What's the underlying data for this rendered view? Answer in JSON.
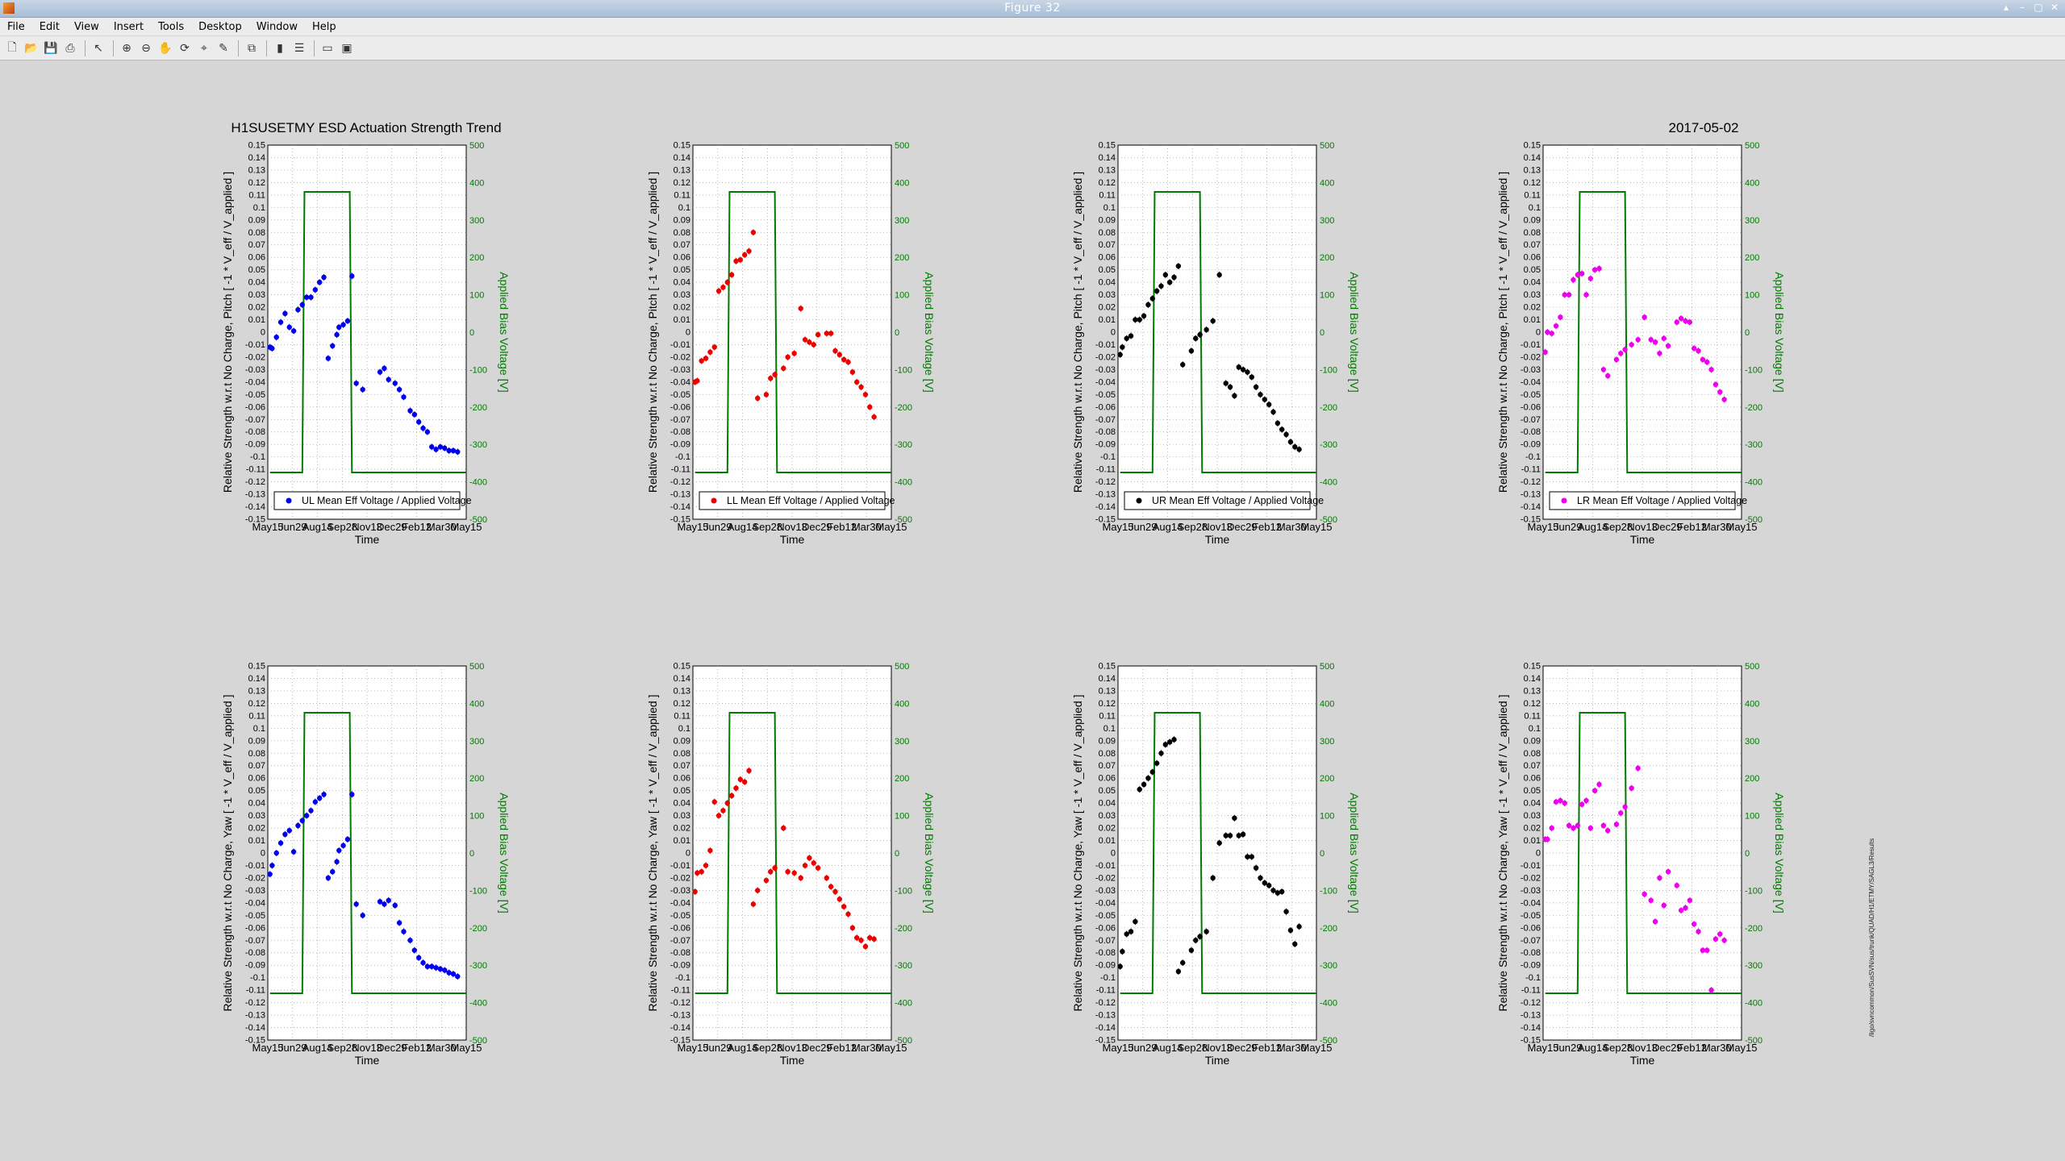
{
  "window": {
    "title": "Figure 32",
    "menu": [
      "File",
      "Edit",
      "View",
      "Insert",
      "Tools",
      "Desktop",
      "Window",
      "Help"
    ],
    "toolbar_icons": [
      "new-figure-icon",
      "open-file-icon",
      "save-icon",
      "print-icon",
      "|",
      "pointer-icon",
      "|",
      "zoom-in-icon",
      "zoom-out-icon",
      "pan-icon",
      "rotate-icon",
      "data-cursor-icon",
      "brush-icon",
      "|",
      "link-plot-icon",
      "|",
      "colorbar-icon",
      "legend-icon",
      "|",
      "hide-tools-icon",
      "show-tools-icon"
    ]
  },
  "figure": {
    "main_title": "H1SUSETMY ESD Actuation Strength Trend",
    "date_title": "2017-05-02",
    "watermark": "/ligo/svncommon/SusSVN/sus/trunk/QUAD/H1/ETMY/SAGL3/Results",
    "colors": {
      "UL": "#0000ee",
      "LL": "#ee0000",
      "UR": "#000000",
      "LR": "#ee00ee",
      "bias": "#007a00"
    }
  },
  "chart_data": [
    {
      "type": "scatter",
      "panel": "pitch-UL",
      "ylabel": "Relative Strength w.r.t No Charge, Pitch [ -1 * V_eff / V_applied ]",
      "y2label": "Applied Bias Voltage [V]",
      "xlabel": "Time",
      "legend": "UL Mean Eff Voltage / Applied Voltage",
      "legend_position": "bottom",
      "color": "#0000ee",
      "x_ticks": [
        "May15",
        "Jun29",
        "Aug14",
        "Sep28",
        "Nov13",
        "Dec29",
        "Feb12",
        "Mar30",
        "May15"
      ],
      "ylim": [
        -0.15,
        0.15
      ],
      "y2lim": [
        -500,
        500
      ],
      "grid": true,
      "x": [
        1,
        2,
        4,
        6,
        8,
        10,
        12,
        14,
        16,
        18,
        20,
        22,
        24,
        26,
        28,
        30,
        32,
        33,
        35,
        37,
        39,
        41,
        44,
        52,
        54,
        56,
        59,
        61,
        63,
        66,
        68,
        70,
        72,
        74,
        76,
        78,
        80,
        82,
        84,
        86,
        88
      ],
      "y": [
        -0.012,
        -0.013,
        -0.004,
        0.008,
        0.015,
        0.004,
        0.001,
        0.018,
        0.022,
        0.028,
        0.028,
        0.034,
        0.04,
        0.044,
        -0.021,
        -0.011,
        -0.002,
        0.004,
        0.006,
        0.009,
        0.045,
        -0.041,
        -0.046,
        -0.032,
        -0.029,
        -0.038,
        -0.041,
        -0.046,
        -0.052,
        -0.063,
        -0.066,
        -0.072,
        -0.077,
        -0.08,
        -0.092,
        -0.094,
        -0.092,
        -0.093,
        -0.095,
        -0.095,
        -0.096
      ]
    },
    {
      "type": "scatter",
      "panel": "pitch-LL",
      "ylabel": "Relative Strength w.r.t No Charge, Pitch [ -1 * V_eff / V_applied ]",
      "y2label": "Applied Bias Voltage [V]",
      "xlabel": "Time",
      "legend": "LL Mean Eff Voltage / Applied Voltage",
      "legend_position": "bottom",
      "color": "#ee0000",
      "x_ticks": [
        "May15",
        "Jun29",
        "Aug14",
        "Sep28",
        "Nov13",
        "Dec29",
        "Feb12",
        "Mar30",
        "May15"
      ],
      "ylim": [
        -0.15,
        0.15
      ],
      "y2lim": [
        -500,
        500
      ],
      "grid": true,
      "x": [
        1,
        2,
        4,
        6,
        8,
        10,
        12,
        14,
        16,
        18,
        20,
        22,
        24,
        26,
        28,
        30,
        34,
        36,
        38,
        42,
        44,
        47,
        50,
        52,
        54,
        56,
        58,
        62,
        64,
        66,
        68,
        70,
        72,
        74,
        76,
        78,
        80,
        82,
        84
      ],
      "y": [
        -0.04,
        -0.039,
        -0.023,
        -0.021,
        -0.016,
        -0.012,
        0.033,
        0.036,
        0.04,
        0.046,
        0.057,
        0.058,
        0.062,
        0.065,
        0.08,
        -0.053,
        -0.05,
        -0.037,
        -0.034,
        -0.029,
        -0.02,
        -0.017,
        0.019,
        -0.006,
        -0.008,
        -0.01,
        -0.002,
        -0.001,
        -0.001,
        -0.015,
        -0.018,
        -0.022,
        -0.024,
        -0.032,
        -0.04,
        -0.044,
        -0.05,
        -0.06,
        -0.068
      ]
    },
    {
      "type": "scatter",
      "panel": "pitch-UR",
      "ylabel": "Relative Strength w.r.t No Charge, Pitch [ -1 * V_eff / V_applied ]",
      "y2label": "Applied Bias Voltage [V]",
      "xlabel": "Time",
      "legend": "UR Mean Eff Voltage / Applied Voltage",
      "legend_position": "bottom",
      "color": "#000000",
      "x_ticks": [
        "May15",
        "Jun29",
        "Aug14",
        "Sep28",
        "Nov13",
        "Dec29",
        "Feb12",
        "Mar30",
        "May15"
      ],
      "ylim": [
        -0.15,
        0.15
      ],
      "y2lim": [
        -500,
        500
      ],
      "grid": true,
      "x": [
        1,
        2,
        4,
        6,
        8,
        10,
        12,
        14,
        16,
        18,
        20,
        22,
        24,
        26,
        28,
        30,
        34,
        36,
        38,
        41,
        44,
        47,
        50,
        52,
        54,
        56,
        58,
        60,
        62,
        64,
        66,
        68,
        70,
        72,
        74,
        76,
        78,
        80,
        82,
        84
      ],
      "y": [
        -0.018,
        -0.012,
        -0.005,
        -0.003,
        0.01,
        0.01,
        0.013,
        0.022,
        0.027,
        0.033,
        0.037,
        0.046,
        0.04,
        0.044,
        0.053,
        -0.026,
        -0.015,
        -0.005,
        -0.002,
        0.002,
        0.009,
        0.046,
        -0.041,
        -0.044,
        -0.051,
        -0.028,
        -0.03,
        -0.032,
        -0.036,
        -0.044,
        -0.05,
        -0.054,
        -0.058,
        -0.064,
        -0.073,
        -0.078,
        -0.082,
        -0.088,
        -0.092,
        -0.094
      ]
    },
    {
      "type": "scatter",
      "panel": "pitch-LR",
      "ylabel": "Relative Strength w.r.t No Charge, Pitch [ -1 * V_eff / V_applied ]",
      "y2label": "Applied Bias Voltage [V]",
      "xlabel": "Time",
      "legend": "LR Mean Eff Voltage / Applied Voltage",
      "legend_position": "bottom",
      "color": "#ee00ee",
      "x_ticks": [
        "May15",
        "Jun29",
        "Aug14",
        "Sep28",
        "Nov13",
        "Dec29",
        "Feb12",
        "Mar30",
        "May15"
      ],
      "ylim": [
        -0.15,
        0.15
      ],
      "y2lim": [
        -500,
        500
      ],
      "grid": true,
      "x": [
        1,
        2,
        4,
        6,
        8,
        10,
        12,
        14,
        16,
        18,
        20,
        22,
        24,
        26,
        28,
        30,
        34,
        36,
        38,
        41,
        44,
        47,
        50,
        52,
        54,
        56,
        58,
        62,
        64,
        66,
        68,
        70,
        72,
        74,
        76,
        78,
        80,
        82,
        84
      ],
      "y": [
        -0.016,
        0.0,
        -0.001,
        0.005,
        0.012,
        0.03,
        0.03,
        0.042,
        0.046,
        0.047,
        0.03,
        0.043,
        0.05,
        0.051,
        -0.03,
        -0.035,
        -0.022,
        -0.017,
        -0.014,
        -0.01,
        -0.006,
        0.012,
        -0.006,
        -0.008,
        -0.017,
        -0.005,
        -0.011,
        0.008,
        0.011,
        0.009,
        0.008,
        -0.013,
        -0.015,
        -0.022,
        -0.024,
        -0.03,
        -0.042,
        -0.048,
        -0.054
      ]
    },
    {
      "type": "scatter",
      "panel": "yaw-UL",
      "ylabel": "Relative Strength w.r.t No Charge, Yaw [ -1 * V_eff / V_applied ]",
      "y2label": "Applied Bias Voltage [V]",
      "xlabel": "Time",
      "color": "#0000ee",
      "x_ticks": [
        "May15",
        "Jun29",
        "Aug14",
        "Sep28",
        "Nov13",
        "Dec29",
        "Feb12",
        "Mar30",
        "May15"
      ],
      "ylim": [
        -0.15,
        0.15
      ],
      "y2lim": [
        -500,
        500
      ],
      "grid": true,
      "x": [
        1,
        2,
        4,
        6,
        8,
        10,
        12,
        14,
        16,
        18,
        20,
        22,
        24,
        26,
        28,
        30,
        32,
        33,
        35,
        37,
        39,
        41,
        44,
        52,
        54,
        56,
        59,
        61,
        63,
        66,
        68,
        70,
        72,
        74,
        76,
        78,
        80,
        82,
        84,
        86,
        88
      ],
      "y": [
        -0.017,
        -0.01,
        0.0,
        0.008,
        0.015,
        0.018,
        0.001,
        0.022,
        0.026,
        0.03,
        0.034,
        0.041,
        0.044,
        0.047,
        -0.02,
        -0.015,
        -0.007,
        0.002,
        0.006,
        0.011,
        0.047,
        -0.041,
        -0.05,
        -0.039,
        -0.041,
        -0.038,
        -0.042,
        -0.056,
        -0.063,
        -0.07,
        -0.078,
        -0.084,
        -0.088,
        -0.091,
        -0.091,
        -0.092,
        -0.093,
        -0.094,
        -0.096,
        -0.097,
        -0.099
      ]
    },
    {
      "type": "scatter",
      "panel": "yaw-LL",
      "ylabel": "Relative Strength w.r.t No Charge, Yaw [ -1 * V_eff / V_applied ]",
      "y2label": "Applied Bias Voltage [V]",
      "xlabel": "Time",
      "color": "#ee0000",
      "x_ticks": [
        "May15",
        "Jun29",
        "Aug14",
        "Sep28",
        "Nov13",
        "Dec29",
        "Feb12",
        "Mar30",
        "May15"
      ],
      "ylim": [
        -0.15,
        0.15
      ],
      "y2lim": [
        -500,
        500
      ],
      "grid": true,
      "x": [
        1,
        2,
        4,
        6,
        8,
        10,
        12,
        14,
        16,
        18,
        20,
        22,
        24,
        26,
        28,
        30,
        34,
        36,
        38,
        42,
        44,
        47,
        50,
        52,
        54,
        56,
        58,
        62,
        64,
        66,
        68,
        70,
        72,
        74,
        76,
        78,
        80,
        82,
        84
      ],
      "y": [
        -0.031,
        -0.016,
        -0.015,
        -0.01,
        0.002,
        0.041,
        0.03,
        0.034,
        0.04,
        0.046,
        0.052,
        0.059,
        0.057,
        0.066,
        -0.041,
        -0.03,
        -0.022,
        -0.015,
        -0.012,
        0.02,
        -0.015,
        -0.016,
        -0.02,
        -0.01,
        -0.004,
        -0.008,
        -0.012,
        -0.02,
        -0.027,
        -0.031,
        -0.037,
        -0.043,
        -0.049,
        -0.06,
        -0.068,
        -0.07,
        -0.075,
        -0.068,
        -0.069
      ]
    },
    {
      "type": "scatter",
      "panel": "yaw-UR",
      "ylabel": "Relative Strength w.r.t No Charge, Yaw [ -1 * V_eff / V_applied ]",
      "y2label": "Applied Bias Voltage [V]",
      "xlabel": "Time",
      "color": "#000000",
      "x_ticks": [
        "May15",
        "Jun29",
        "Aug14",
        "Sep28",
        "Nov13",
        "Dec29",
        "Feb12",
        "Mar30",
        "May15"
      ],
      "ylim": [
        -0.15,
        0.15
      ],
      "y2lim": [
        -500,
        500
      ],
      "grid": true,
      "x": [
        1,
        2,
        4,
        6,
        8,
        10,
        12,
        14,
        16,
        18,
        20,
        22,
        24,
        26,
        28,
        30,
        34,
        36,
        38,
        41,
        44,
        47,
        50,
        52,
        54,
        56,
        58,
        60,
        62,
        64,
        66,
        68,
        70,
        72,
        74,
        76,
        78,
        80,
        82,
        84
      ],
      "y": [
        -0.091,
        -0.079,
        -0.065,
        -0.063,
        -0.055,
        0.051,
        0.055,
        0.06,
        0.065,
        0.072,
        0.08,
        0.087,
        0.089,
        0.091,
        -0.095,
        -0.088,
        -0.078,
        -0.07,
        -0.067,
        -0.063,
        -0.02,
        0.008,
        0.014,
        0.014,
        0.028,
        0.014,
        0.015,
        -0.003,
        -0.003,
        -0.012,
        -0.02,
        -0.024,
        -0.026,
        -0.03,
        -0.032,
        -0.031,
        -0.047,
        -0.062,
        -0.073,
        -0.059
      ]
    },
    {
      "type": "scatter",
      "panel": "yaw-LR",
      "ylabel": "Relative Strength w.r.t No Charge, Yaw [ -1 * V_eff / V_applied ]",
      "y2label": "Applied Bias Voltage [V]",
      "xlabel": "Time",
      "color": "#ee00ee",
      "x_ticks": [
        "May15",
        "Jun29",
        "Aug14",
        "Sep28",
        "Nov13",
        "Dec29",
        "Feb12",
        "Mar30",
        "May15"
      ],
      "ylim": [
        -0.15,
        0.15
      ],
      "y2lim": [
        -500,
        500
      ],
      "grid": true,
      "x": [
        1,
        2,
        4,
        6,
        8,
        10,
        12,
        14,
        16,
        18,
        20,
        22,
        24,
        26,
        28,
        30,
        34,
        36,
        38,
        41,
        44,
        47,
        50,
        52,
        54,
        56,
        58,
        62,
        64,
        66,
        68,
        70,
        72,
        74,
        76,
        78,
        80,
        82,
        84
      ],
      "y": [
        0.011,
        0.011,
        0.02,
        0.041,
        0.042,
        0.04,
        0.022,
        0.02,
        0.022,
        0.039,
        0.042,
        0.02,
        0.05,
        0.055,
        0.022,
        0.018,
        0.023,
        0.032,
        0.037,
        0.052,
        0.068,
        -0.033,
        -0.038,
        -0.055,
        -0.02,
        -0.042,
        -0.015,
        -0.026,
        -0.046,
        -0.044,
        -0.038,
        -0.057,
        -0.063,
        -0.078,
        -0.078,
        -0.11,
        -0.069,
        -0.065,
        -0.07
      ]
    }
  ],
  "bias_trace": {
    "x": [
      1,
      16,
      17,
      21,
      22,
      38,
      39,
      43,
      44,
      92
    ],
    "v": [
      -375,
      -375,
      375,
      375,
      375,
      375,
      -375,
      -375,
      -375,
      -375
    ]
  },
  "axis": {
    "y_ticks": [
      "0.15",
      "0.14",
      "0.13",
      "0.12",
      "0.11",
      "0.1",
      "0.09",
      "0.08",
      "0.07",
      "0.06",
      "0.05",
      "0.04",
      "0.03",
      "0.02",
      "0.01",
      "0",
      "-0.01",
      "-0.02",
      "-0.03",
      "-0.04",
      "-0.05",
      "-0.06",
      "-0.07",
      "-0.08",
      "-0.09",
      "-0.1",
      "-0.11",
      "-0.12",
      "-0.13",
      "-0.14",
      "-0.15"
    ],
    "y2_ticks": [
      "500",
      "400",
      "300",
      "200",
      "100",
      "0",
      "-100",
      "-200",
      "-300",
      "-400",
      "-500"
    ]
  }
}
